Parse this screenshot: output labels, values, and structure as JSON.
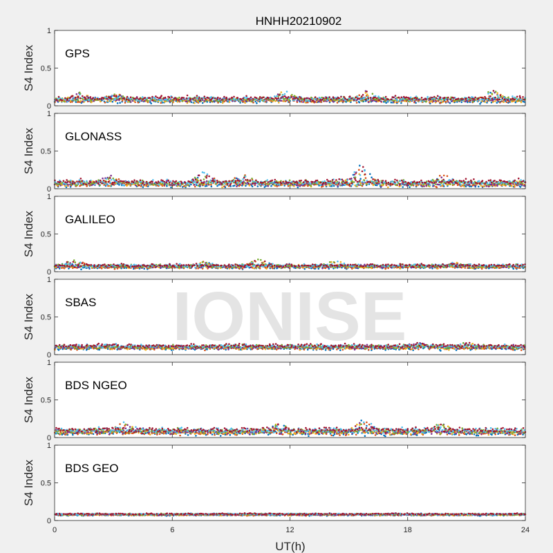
{
  "title": "HNHH20210902",
  "watermark": "IONISE",
  "chart_data": {
    "type": "scatter",
    "title": "HNHH20210902",
    "xlabel": "UT(h)",
    "xlim": [
      0,
      24
    ],
    "xticks": [
      0,
      6,
      12,
      18,
      24
    ],
    "xtick_labels": [
      "0",
      "6",
      "12",
      "18",
      "24"
    ],
    "grid": false,
    "series_colors": [
      "#0072bd",
      "#d95319",
      "#edb120",
      "#7e2f8e",
      "#77ac30",
      "#4dbeee",
      "#a2142f"
    ],
    "panels": [
      {
        "label": "GPS",
        "ylabel": "S4 Index",
        "ylim": [
          0,
          1
        ],
        "yticks": [
          0,
          0.5,
          1
        ],
        "ytick_labels": [
          "0",
          "0.5",
          "1"
        ],
        "baseline": 0.08,
        "spread": 0.035,
        "peaks": [
          [
            1.3,
            0.18
          ],
          [
            3.1,
            0.17
          ],
          [
            11.7,
            0.21
          ],
          [
            15.9,
            0.2
          ],
          [
            22.3,
            0.22
          ]
        ]
      },
      {
        "label": "GLONASS",
        "ylabel": "S4 Index",
        "ylim": [
          0,
          1
        ],
        "yticks": [
          0,
          0.5,
          1
        ],
        "ytick_labels": [
          "0",
          "0.5",
          "1"
        ],
        "baseline": 0.07,
        "spread": 0.04,
        "peaks": [
          [
            2.8,
            0.19
          ],
          [
            7.6,
            0.24
          ],
          [
            9.6,
            0.21
          ],
          [
            15.6,
            0.34
          ],
          [
            19.8,
            0.2
          ]
        ]
      },
      {
        "label": "GALILEO",
        "ylabel": "S4 Index",
        "ylim": [
          0,
          1
        ],
        "yticks": [
          0,
          0.5,
          1
        ],
        "ytick_labels": [
          "0",
          "0.5",
          "1"
        ],
        "baseline": 0.07,
        "spread": 0.025,
        "peaks": [
          [
            1.0,
            0.17
          ],
          [
            7.6,
            0.14
          ],
          [
            10.4,
            0.18
          ],
          [
            14.3,
            0.16
          ],
          [
            20.4,
            0.13
          ]
        ]
      },
      {
        "label": "SBAS",
        "ylabel": "S4 Index",
        "ylim": [
          0,
          1
        ],
        "yticks": [
          0,
          0.5,
          1
        ],
        "ytick_labels": [
          "0",
          "0.5",
          "1"
        ],
        "baseline": 0.1,
        "spread": 0.03,
        "peaks": [
          [
            18.5,
            0.17
          ],
          [
            21.0,
            0.17
          ]
        ]
      },
      {
        "label": "BDS NGEO",
        "ylabel": "S4 Index",
        "ylim": [
          0,
          1
        ],
        "yticks": [
          0,
          0.5,
          1
        ],
        "ytick_labels": [
          "0",
          "0.5",
          "1"
        ],
        "baseline": 0.08,
        "spread": 0.04,
        "peaks": [
          [
            3.5,
            0.21
          ],
          [
            11.4,
            0.2
          ],
          [
            15.8,
            0.26
          ],
          [
            19.7,
            0.2
          ]
        ]
      },
      {
        "label": "BDS GEO",
        "ylabel": "S4 Index",
        "ylim": [
          0,
          1
        ],
        "yticks": [
          0,
          0.5,
          1
        ],
        "ytick_labels": [
          "0",
          "0.5",
          "1"
        ],
        "baseline": 0.08,
        "spread": 0.012,
        "peaks": []
      }
    ]
  }
}
